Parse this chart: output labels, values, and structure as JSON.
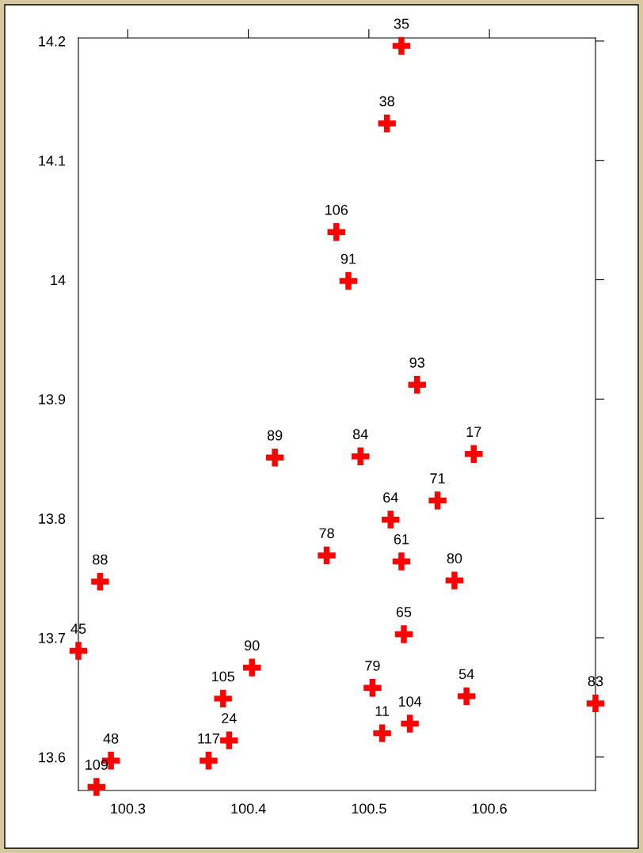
{
  "chart_data": {
    "type": "scatter",
    "x": [
      100.527,
      100.515,
      100.473,
      100.483,
      100.54,
      100.422,
      100.493,
      100.587,
      100.557,
      100.518,
      100.527,
      100.465,
      100.277,
      100.571,
      100.529,
      100.259,
      100.403,
      100.379,
      100.581,
      100.688,
      100.503,
      100.534,
      100.511,
      100.384,
      100.286,
      100.367,
      100.274
    ],
    "series": [
      {
        "color": "#ff0000",
        "values": [
          14.196,
          14.131,
          14.04,
          13.999,
          13.912,
          13.851,
          13.852,
          13.854,
          13.815,
          13.799,
          13.764,
          13.769,
          13.747,
          13.748,
          13.703,
          13.689,
          13.675,
          13.649,
          13.651,
          13.645,
          13.658,
          13.628,
          13.62,
          13.614,
          13.597,
          13.597,
          13.575
        ]
      }
    ],
    "annotations": [
      {
        "text": "35",
        "x": 100.527,
        "y": 14.196
      },
      {
        "text": "38",
        "x": 100.515,
        "y": 14.131
      },
      {
        "text": "106",
        "x": 100.473,
        "y": 14.04
      },
      {
        "text": "91",
        "x": 100.483,
        "y": 13.999
      },
      {
        "text": "93",
        "x": 100.54,
        "y": 13.912
      },
      {
        "text": "89",
        "x": 100.422,
        "y": 13.851
      },
      {
        "text": "84",
        "x": 100.493,
        "y": 13.852
      },
      {
        "text": "17",
        "x": 100.587,
        "y": 13.854
      },
      {
        "text": "71",
        "x": 100.557,
        "y": 13.815
      },
      {
        "text": "64",
        "x": 100.518,
        "y": 13.799
      },
      {
        "text": "61",
        "x": 100.527,
        "y": 13.764
      },
      {
        "text": "78",
        "x": 100.465,
        "y": 13.769
      },
      {
        "text": "88",
        "x": 100.277,
        "y": 13.747
      },
      {
        "text": "80",
        "x": 100.571,
        "y": 13.748
      },
      {
        "text": "65",
        "x": 100.529,
        "y": 13.703
      },
      {
        "text": "45",
        "x": 100.259,
        "y": 13.689
      },
      {
        "text": "90",
        "x": 100.403,
        "y": 13.675
      },
      {
        "text": "105",
        "x": 100.379,
        "y": 13.649
      },
      {
        "text": "54",
        "x": 100.581,
        "y": 13.651
      },
      {
        "text": "83",
        "x": 100.688,
        "y": 13.645
      },
      {
        "text": "79",
        "x": 100.503,
        "y": 13.658
      },
      {
        "text": "104",
        "x": 100.534,
        "y": 13.628
      },
      {
        "text": "11",
        "x": 100.511,
        "y": 13.62
      },
      {
        "text": "24",
        "x": 100.384,
        "y": 13.614
      },
      {
        "text": "48",
        "x": 100.286,
        "y": 13.597
      },
      {
        "text": "117",
        "x": 100.367,
        "y": 13.597
      },
      {
        "text": "109",
        "x": 100.274,
        "y": 13.575
      }
    ],
    "xlim": [
      100.259,
      100.688
    ],
    "ylim": [
      13.572,
      14.2026
    ],
    "xticks": [
      100.3,
      100.4,
      100.5,
      100.6
    ],
    "yticks": [
      13.6,
      13.7,
      13.8,
      13.9,
      14,
      14.1,
      14.2
    ],
    "marker": "cross",
    "grid": false
  }
}
